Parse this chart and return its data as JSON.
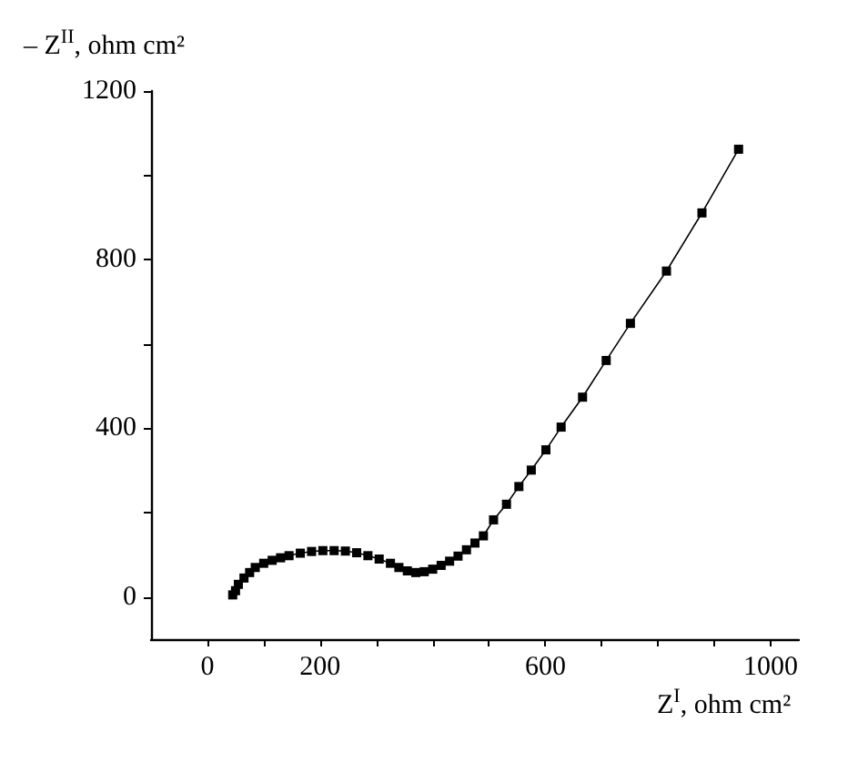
{
  "chart_data": {
    "type": "line",
    "xlabel": "Z$^{I}$, ohm cm²",
    "ylabel": "– Z$^{II}$, ohm cm²",
    "marker": "square",
    "line_style": "solid",
    "xlim": [
      -100,
      1050
    ],
    "ylim": [
      -100,
      1200
    ],
    "xticks": [
      0,
      {
        "value": 100,
        "label": null
      },
      200,
      {
        "value": 300,
        "label": null
      },
      {
        "value": 400,
        "label": null
      },
      {
        "value": 500,
        "label": null
      },
      600,
      {
        "value": 700,
        "label": null
      },
      {
        "value": 800,
        "label": null
      },
      {
        "value": 900,
        "label": null
      },
      1000
    ],
    "yticks": [
      0,
      {
        "value": 200,
        "label": null
      },
      400,
      {
        "value": 600,
        "label": null
      },
      800,
      {
        "value": 1000,
        "label": null
      },
      1200
    ],
    "series": [
      {
        "color": "#000000",
        "x": [
          45,
          50,
          55,
          65,
          75,
          85,
          100,
          115,
          130,
          145,
          165,
          185,
          205,
          225,
          245,
          265,
          285,
          305,
          325,
          340,
          355,
          370,
          385,
          400,
          415,
          430,
          445,
          460,
          475,
          490,
          508,
          531,
          553,
          575,
          601,
          628,
          666,
          708,
          751,
          815,
          878,
          943
        ],
        "values": [
          5,
          15,
          30,
          45,
          58,
          70,
          80,
          87,
          93,
          98,
          104,
          108,
          110,
          110,
          109,
          105,
          98,
          90,
          80,
          70,
          62,
          58,
          60,
          66,
          75,
          85,
          97,
          112,
          128,
          145,
          183,
          220,
          262,
          301,
          349,
          403,
          474,
          561,
          649,
          773,
          911,
          1062
        ]
      }
    ]
  }
}
